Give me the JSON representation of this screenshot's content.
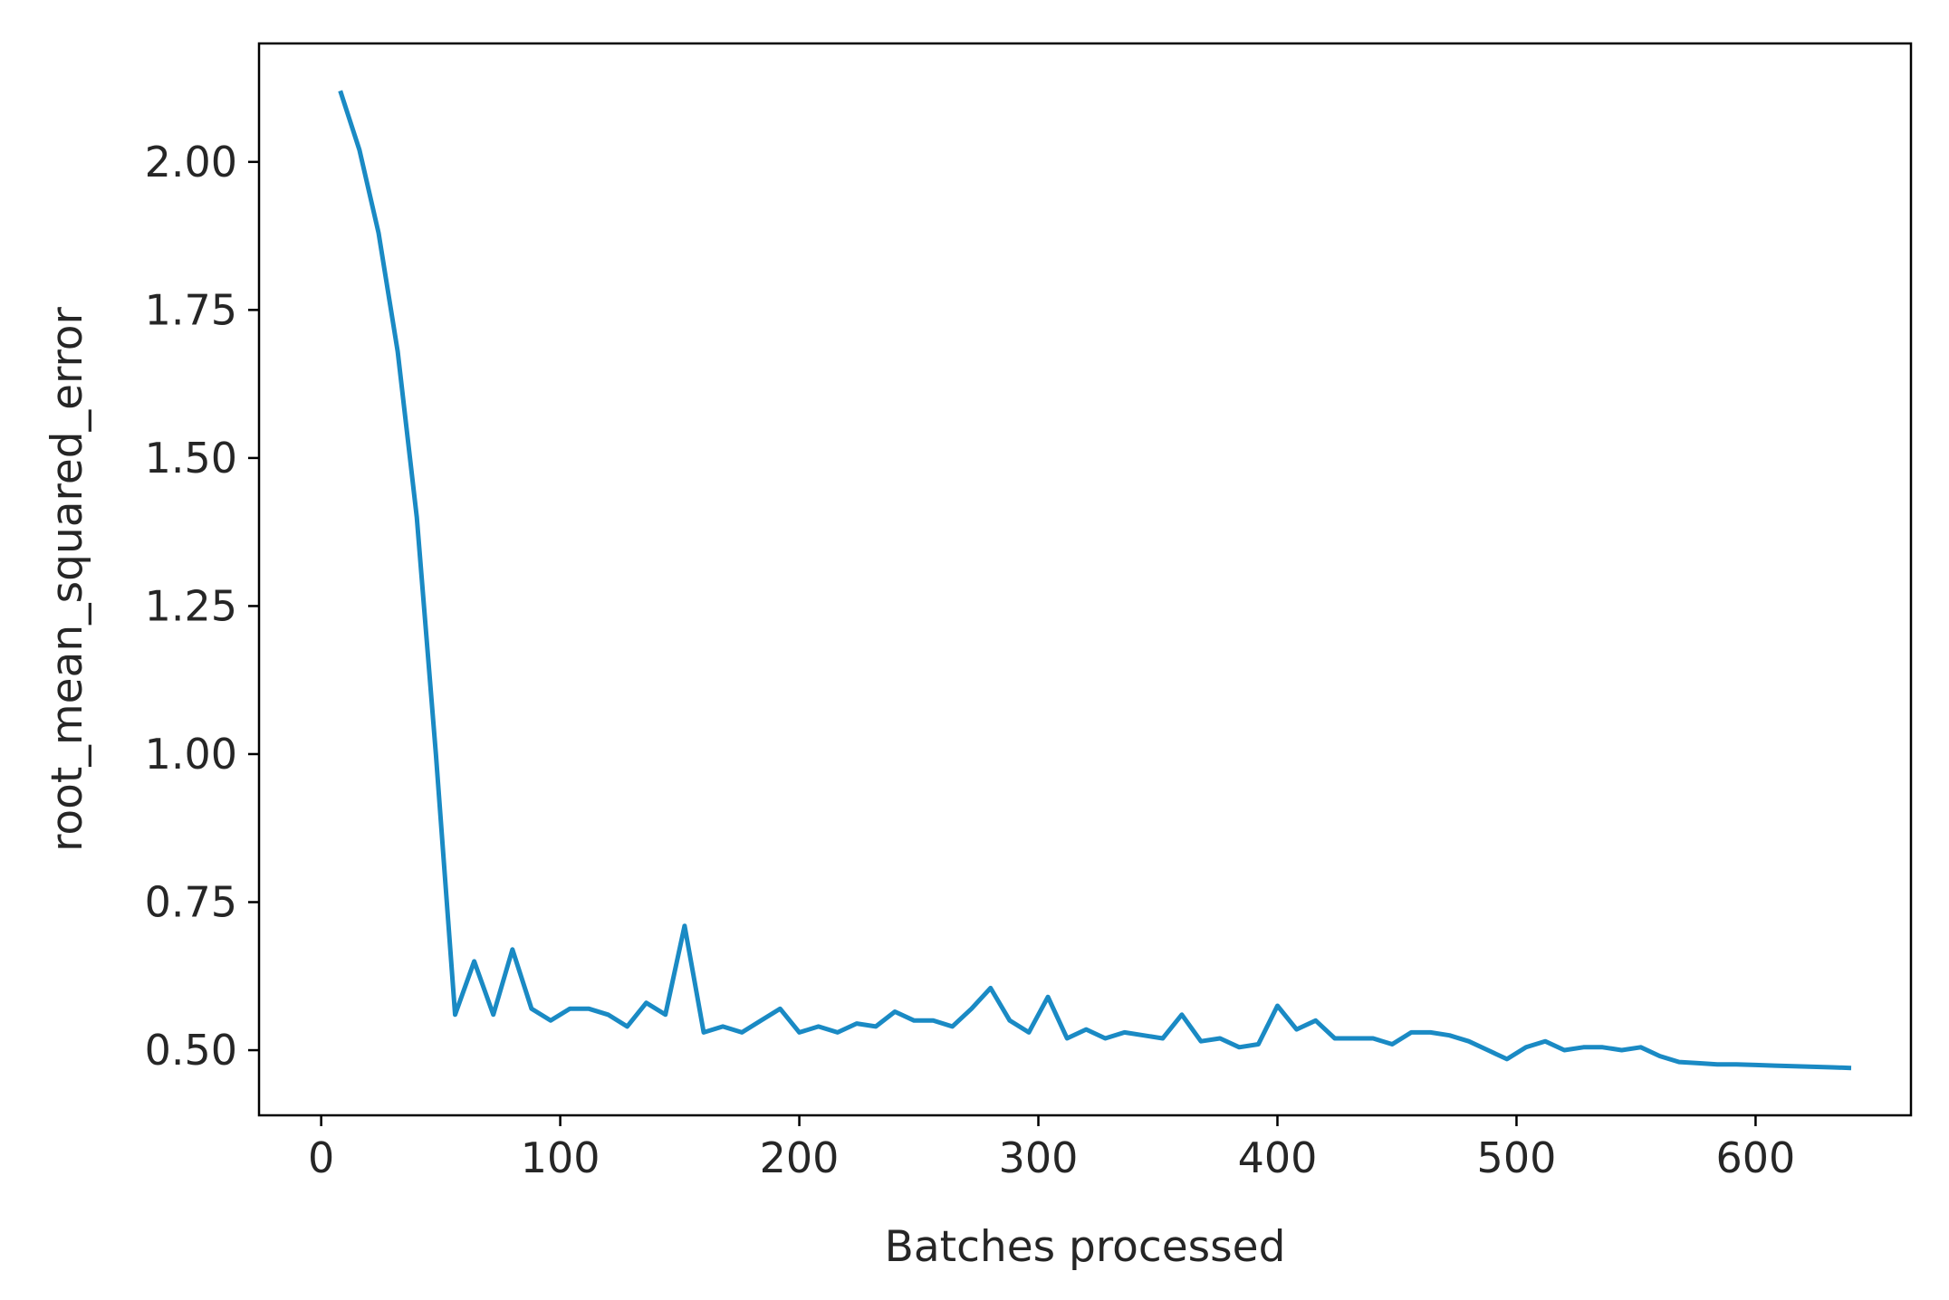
{
  "chart_data": {
    "type": "line",
    "title": "",
    "xlabel": "Batches processed",
    "ylabel": "root_mean_squared_error",
    "xlim": [
      -26,
      665
    ],
    "ylim": [
      0.39,
      2.2
    ],
    "xticks": [
      0,
      100,
      200,
      300,
      400,
      500,
      600
    ],
    "xtick_labels": [
      "0",
      "100",
      "200",
      "300",
      "400",
      "500",
      "600"
    ],
    "yticks": [
      0.5,
      0.75,
      1.0,
      1.25,
      1.5,
      1.75,
      2.0
    ],
    "ytick_labels": [
      "0.50",
      "0.75",
      "1.00",
      "1.25",
      "1.50",
      "1.75",
      "2.00"
    ],
    "grid": false,
    "legend": "none",
    "line_color": "#1a8ac4",
    "series": [
      {
        "x": [
          8,
          16,
          24,
          32,
          40,
          48,
          56,
          64,
          72,
          80,
          88,
          96,
          104,
          112,
          120,
          128,
          136,
          144,
          152,
          160,
          168,
          176,
          184,
          192,
          200,
          208,
          216,
          224,
          232,
          240,
          248,
          256,
          264,
          272,
          280,
          288,
          296,
          304,
          312,
          320,
          328,
          336,
          344,
          352,
          360,
          368,
          376,
          384,
          392,
          400,
          408,
          416,
          424,
          432,
          440,
          448,
          456,
          464,
          472,
          480,
          488,
          496,
          504,
          512,
          520,
          528,
          536,
          544,
          552,
          560,
          568,
          576,
          584,
          592,
          600,
          608,
          616,
          624,
          632,
          640
        ],
        "y": [
          2.12,
          2.02,
          1.88,
          1.68,
          1.4,
          1.0,
          0.56,
          0.65,
          0.56,
          0.67,
          0.57,
          0.55,
          0.57,
          0.57,
          0.56,
          0.54,
          0.58,
          0.56,
          0.71,
          0.53,
          0.54,
          0.53,
          0.55,
          0.57,
          0.53,
          0.54,
          0.53,
          0.545,
          0.54,
          0.565,
          0.55,
          0.55,
          0.54,
          0.57,
          0.605,
          0.55,
          0.53,
          0.59,
          0.52,
          0.535,
          0.52,
          0.53,
          0.525,
          0.52,
          0.56,
          0.515,
          0.52,
          0.505,
          0.51,
          0.575,
          0.535,
          0.55,
          0.52,
          0.52,
          0.52,
          0.51,
          0.53,
          0.53,
          0.525,
          0.515,
          0.5,
          0.485,
          0.505,
          0.515,
          0.5,
          0.505,
          0.505,
          0.5,
          0.505,
          0.49,
          0.48,
          0.478,
          0.476,
          0.476,
          0.475,
          0.474,
          0.473,
          0.472,
          0.471,
          0.47
        ]
      }
    ]
  }
}
